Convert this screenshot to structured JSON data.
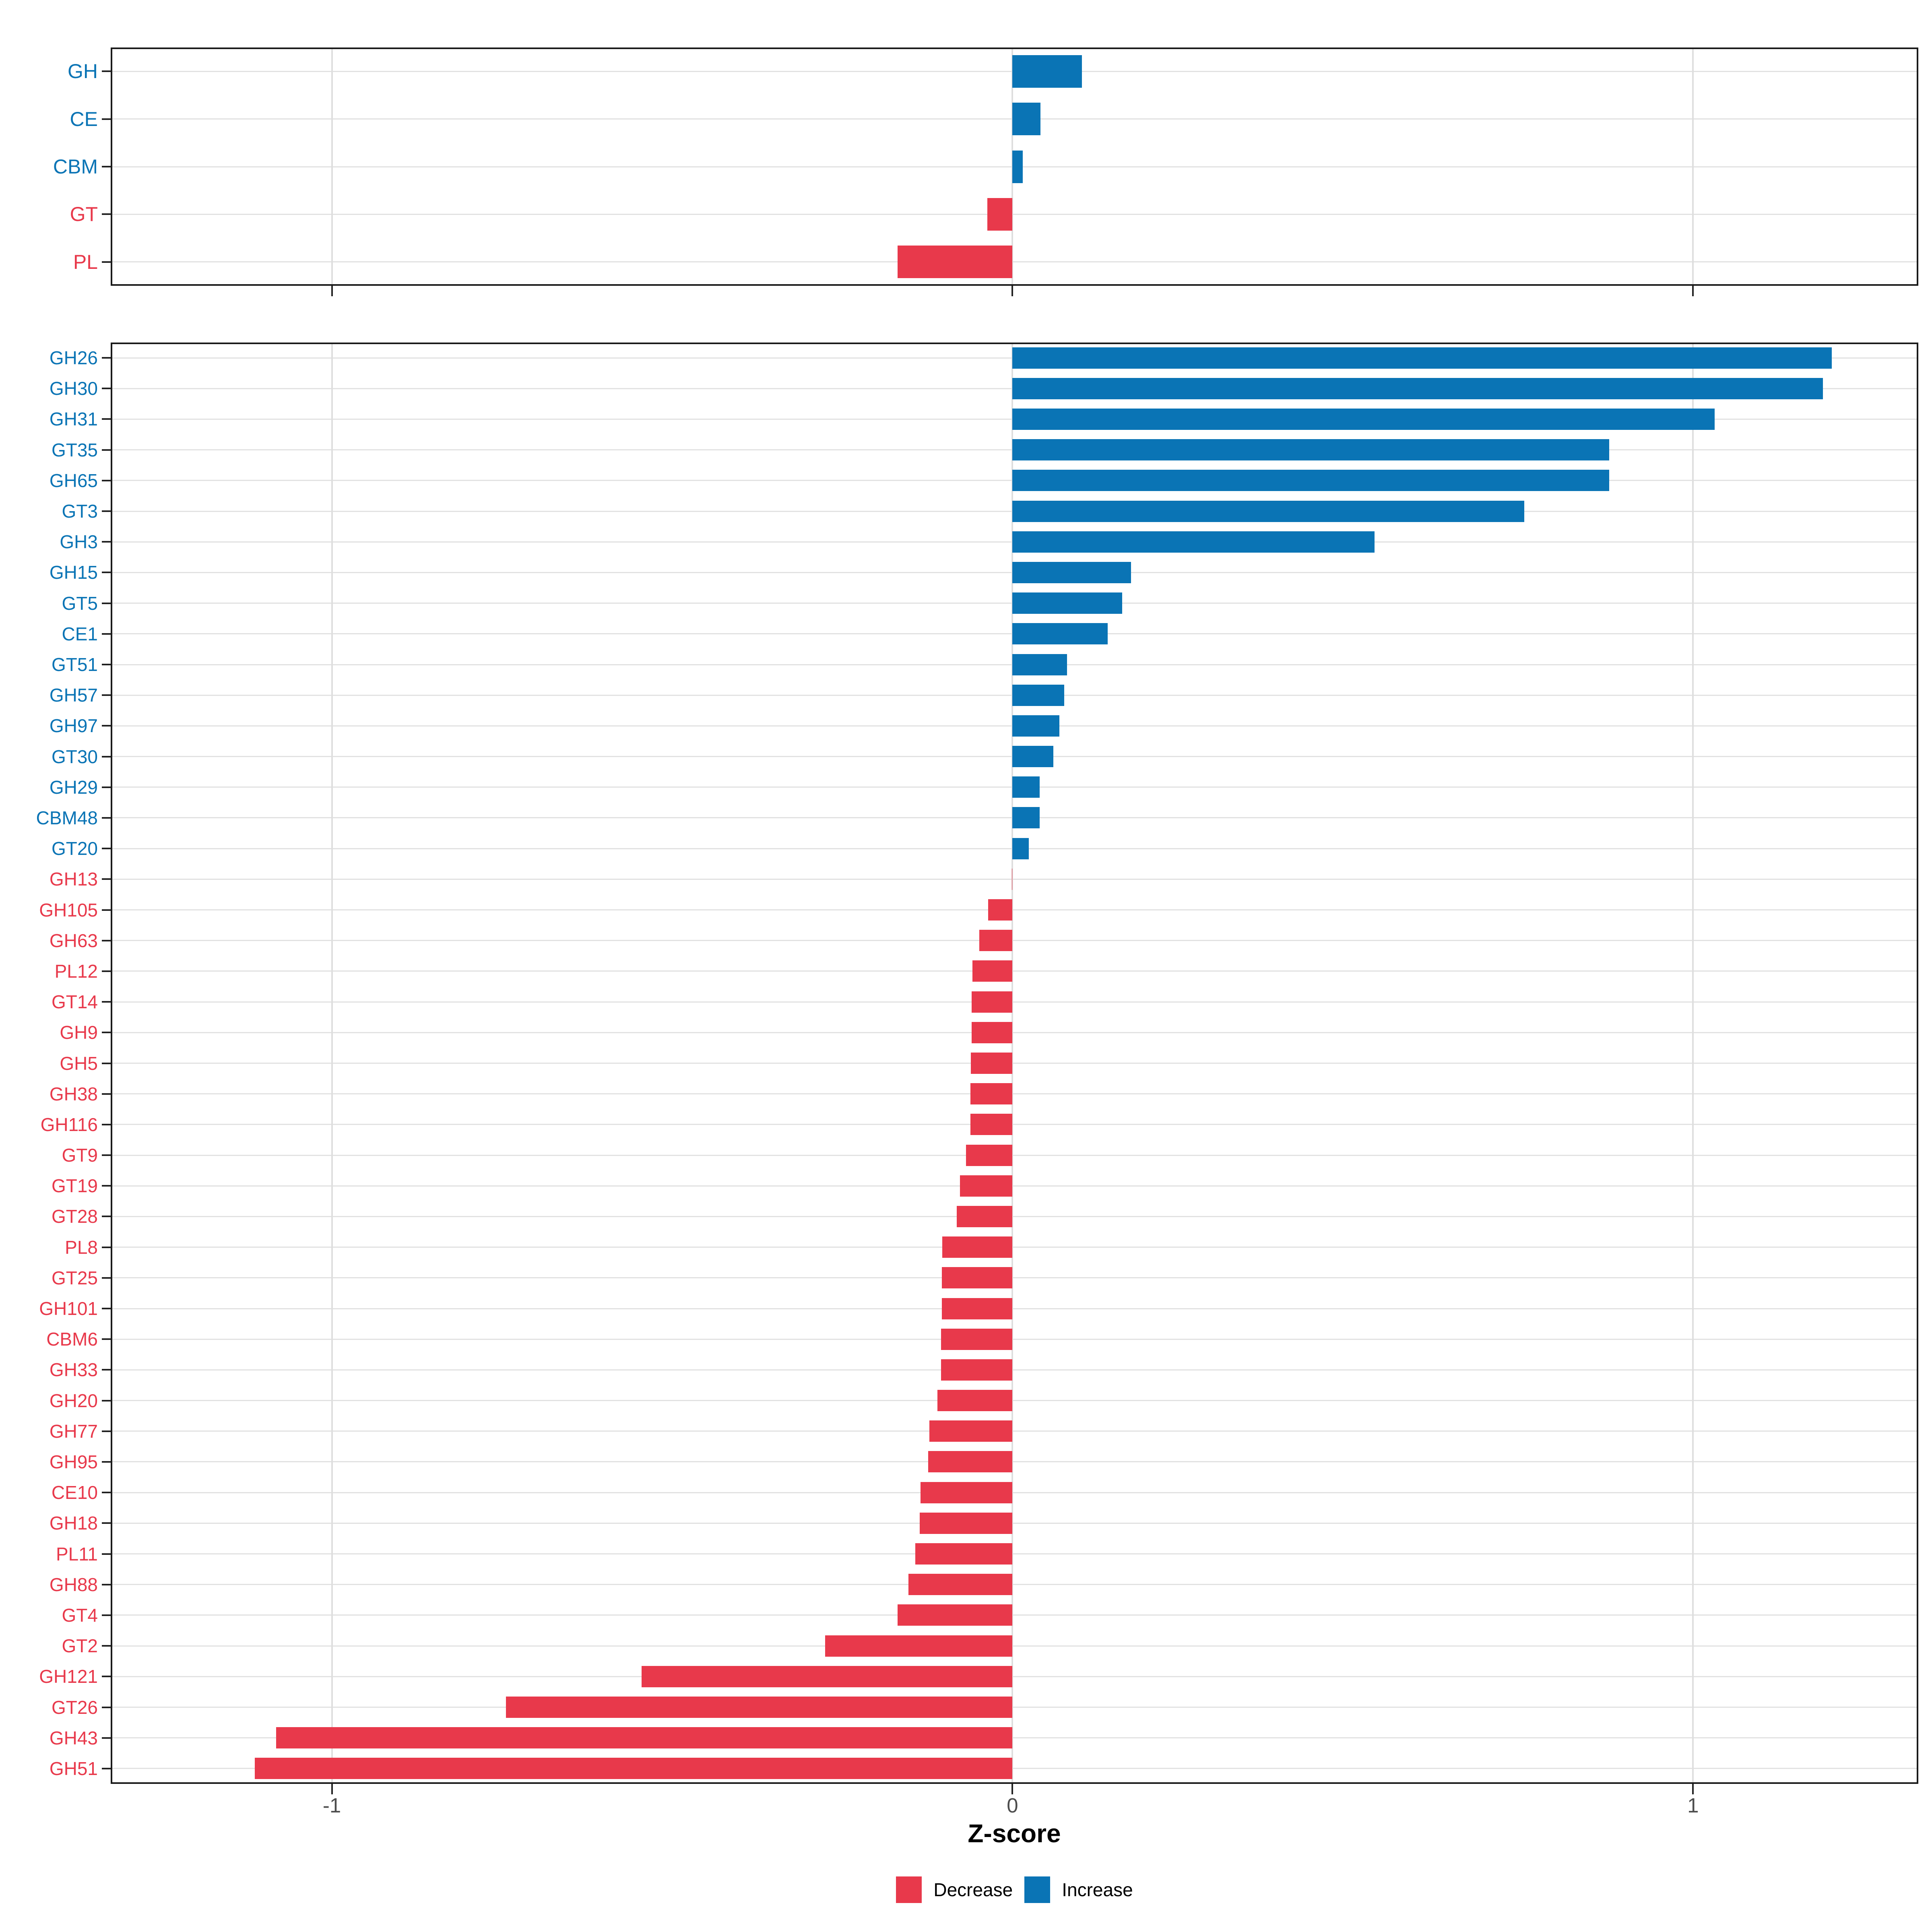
{
  "xlabel": "Z-score",
  "x_tick_labels": [
    "-1",
    "0",
    "1"
  ],
  "x_tick_values": [
    -1,
    0,
    1
  ],
  "x_domain": {
    "min": -1.325,
    "max": 1.331
  },
  "colors": {
    "increase": "#0a74b5",
    "decrease": "#e8394b",
    "grid": "#e2e2e2",
    "tick_label": "#4d4d4d",
    "panel_border": "#1a1a1a",
    "background": "#ffffff"
  },
  "legend": {
    "items": [
      {
        "label": "Decrease",
        "color": "#e8394b"
      },
      {
        "label": "Increase",
        "color": "#0a74b5"
      }
    ]
  },
  "chart_data": [
    {
      "id": "class-summary",
      "type": "bar",
      "orientation": "horizontal",
      "xlabel": "Z-score",
      "xlim": [
        -1.325,
        1.331
      ],
      "xticks": [
        -1,
        0,
        1
      ],
      "grid": true,
      "legend_position": "bottom",
      "categories": [
        "GH",
        "CE",
        "CBM",
        "GT",
        "PL"
      ],
      "values": [
        0.102,
        0.041,
        0.015,
        -0.037,
        -0.169
      ],
      "directions": [
        "Increase",
        "Increase",
        "Increase",
        "Decrease",
        "Decrease"
      ]
    },
    {
      "id": "family-detail",
      "type": "bar",
      "orientation": "horizontal",
      "xlabel": "Z-score",
      "xlim": [
        -1.325,
        1.331
      ],
      "xticks": [
        -1,
        0,
        1
      ],
      "grid": true,
      "legend_position": "bottom",
      "categories": [
        "GH26",
        "GH30",
        "GH31",
        "GT35",
        "GH65",
        "GT3",
        "GH3",
        "GH15",
        "GT5",
        "CE1",
        "GT51",
        "GH57",
        "GH97",
        "GT30",
        "GH29",
        "CBM48",
        "GT20",
        "GH13",
        "GH105",
        "GH63",
        "PL12",
        "GT14",
        "GH9",
        "GH5",
        "GH38",
        "GH116",
        "GT9",
        "GT19",
        "GT28",
        "PL8",
        "GT25",
        "GH101",
        "CBM6",
        "GH33",
        "GH20",
        "GH77",
        "GH95",
        "CE10",
        "GH18",
        "PL11",
        "GH88",
        "GT4",
        "GT2",
        "GH121",
        "GT26",
        "GH43",
        "GH51"
      ],
      "values": [
        1.204,
        1.191,
        1.032,
        0.877,
        0.877,
        0.752,
        0.532,
        0.174,
        0.161,
        0.14,
        0.08,
        0.076,
        0.069,
        0.06,
        0.04,
        0.04,
        0.024,
        -0.001,
        -0.036,
        -0.049,
        -0.059,
        -0.06,
        -0.06,
        -0.061,
        -0.062,
        -0.062,
        -0.068,
        -0.077,
        -0.082,
        -0.103,
        -0.104,
        -0.104,
        -0.105,
        -0.105,
        -0.11,
        -0.122,
        -0.124,
        -0.135,
        -0.136,
        -0.143,
        -0.153,
        -0.169,
        -0.275,
        -0.545,
        -0.744,
        -1.082,
        -1.113
      ],
      "directions": [
        "Increase",
        "Increase",
        "Increase",
        "Increase",
        "Increase",
        "Increase",
        "Increase",
        "Increase",
        "Increase",
        "Increase",
        "Increase",
        "Increase",
        "Increase",
        "Increase",
        "Increase",
        "Increase",
        "Increase",
        "Decrease",
        "Decrease",
        "Decrease",
        "Decrease",
        "Decrease",
        "Decrease",
        "Decrease",
        "Decrease",
        "Decrease",
        "Decrease",
        "Decrease",
        "Decrease",
        "Decrease",
        "Decrease",
        "Decrease",
        "Decrease",
        "Decrease",
        "Decrease",
        "Decrease",
        "Decrease",
        "Decrease",
        "Decrease",
        "Decrease",
        "Decrease",
        "Decrease",
        "Decrease",
        "Decrease",
        "Decrease",
        "Decrease",
        "Decrease"
      ]
    }
  ]
}
